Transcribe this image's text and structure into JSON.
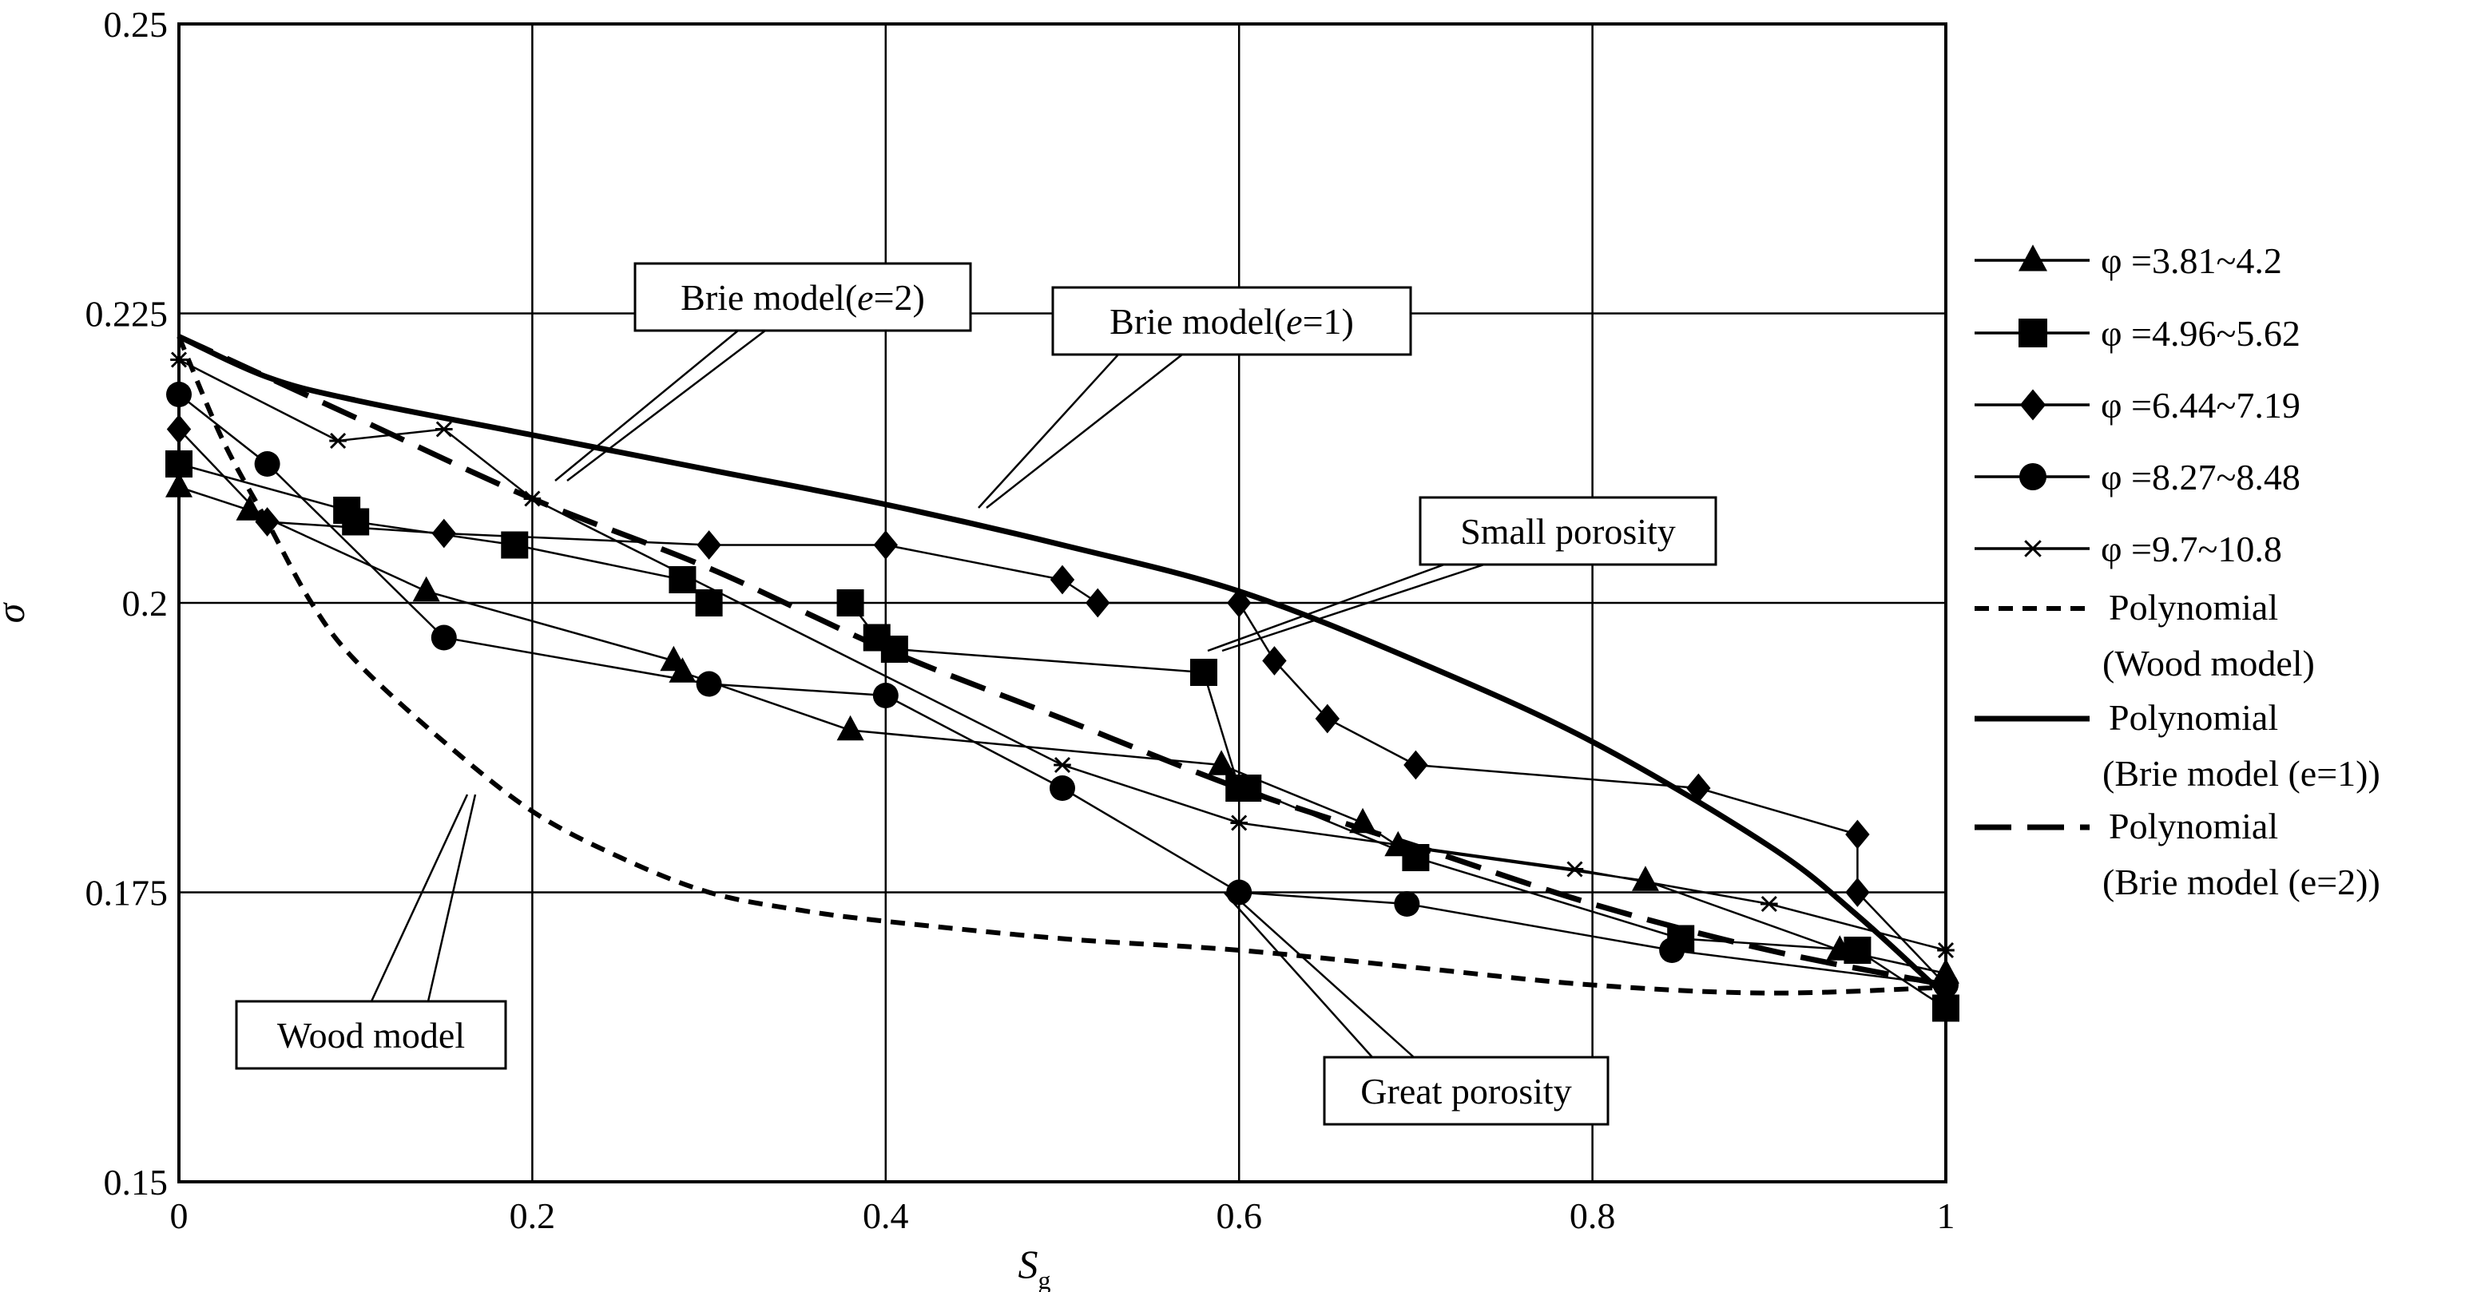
{
  "chart_data": {
    "type": "line",
    "xlabel": "Sg",
    "xlabel_main": "S",
    "xlabel_sub": "g",
    "ylabel": "σ",
    "xlim": [
      0,
      1
    ],
    "ylim": [
      0.15,
      0.25
    ],
    "x_ticks": [
      0,
      0.2,
      0.4,
      0.6,
      0.8,
      1
    ],
    "x_tick_labels": [
      "0",
      "0.2",
      "0.4",
      "0.6",
      "0.8",
      "1"
    ],
    "y_ticks": [
      0.15,
      0.175,
      0.2,
      0.225,
      0.25
    ],
    "y_tick_labels": [
      "0.15",
      "0.175",
      "0.2",
      "0.225",
      "0.25"
    ],
    "grid": true,
    "legend_position": "right",
    "series": [
      {
        "name": "φ =3.81~4.2",
        "marker": "triangle",
        "style": "solid",
        "points": [
          [
            0,
            0.21
          ],
          [
            0.04,
            0.208
          ],
          [
            0.14,
            0.201
          ],
          [
            0.28,
            0.195
          ],
          [
            0.285,
            0.194
          ],
          [
            0.38,
            0.189
          ],
          [
            0.59,
            0.186
          ],
          [
            0.67,
            0.181
          ],
          [
            0.69,
            0.179
          ],
          [
            0.83,
            0.176
          ],
          [
            0.94,
            0.17
          ],
          [
            1.0,
            0.168
          ]
        ]
      },
      {
        "name": "φ =4.96~5.62",
        "marker": "square",
        "style": "solid",
        "points": [
          [
            0,
            0.212
          ],
          [
            0.095,
            0.208
          ],
          [
            0.1,
            0.207
          ],
          [
            0.19,
            0.205
          ],
          [
            0.285,
            0.202
          ],
          [
            0.3,
            0.2
          ],
          [
            0.38,
            0.2
          ],
          [
            0.395,
            0.197
          ],
          [
            0.405,
            0.196
          ],
          [
            0.58,
            0.194
          ],
          [
            0.6,
            0.184
          ],
          [
            0.605,
            0.184
          ],
          [
            0.7,
            0.178
          ],
          [
            0.85,
            0.171
          ],
          [
            0.95,
            0.17
          ],
          [
            1.0,
            0.165
          ]
        ]
      },
      {
        "name": "φ =6.44~7.19",
        "marker": "diamond",
        "style": "solid",
        "points": [
          [
            0,
            0.215
          ],
          [
            0.05,
            0.207
          ],
          [
            0.15,
            0.206
          ],
          [
            0.3,
            0.205
          ],
          [
            0.4,
            0.205
          ],
          [
            0.5,
            0.202
          ],
          [
            0.52,
            0.2
          ],
          [
            0.6,
            0.2
          ],
          [
            0.62,
            0.195
          ],
          [
            0.65,
            0.19
          ],
          [
            0.7,
            0.186
          ],
          [
            0.86,
            0.184
          ],
          [
            0.95,
            0.18
          ],
          [
            0.95,
            0.175
          ],
          [
            1.0,
            0.167
          ]
        ]
      },
      {
        "name": "φ =8.27~8.48",
        "marker": "circle",
        "style": "solid",
        "points": [
          [
            0,
            0.218
          ],
          [
            0.05,
            0.212
          ],
          [
            0.15,
            0.197
          ],
          [
            0.3,
            0.193
          ],
          [
            0.4,
            0.192
          ],
          [
            0.5,
            0.184
          ],
          [
            0.6,
            0.175
          ],
          [
            0.695,
            0.174
          ],
          [
            0.845,
            0.17
          ],
          [
            1.0,
            0.167
          ]
        ]
      },
      {
        "name": "φ =9.7~10.8",
        "marker": "star",
        "style": "solid",
        "points": [
          [
            0,
            0.221
          ],
          [
            0.09,
            0.214
          ],
          [
            0.15,
            0.215
          ],
          [
            0.2,
            0.209
          ],
          [
            0.5,
            0.186
          ],
          [
            0.6,
            0.181
          ],
          [
            0.79,
            0.177
          ],
          [
            0.9,
            0.174
          ],
          [
            1.0,
            0.17
          ]
        ]
      },
      {
        "name": "Polynomial (Wood model)",
        "legend_lines": [
          "Polynomial",
          "(Wood model)"
        ],
        "marker": "none",
        "style": "short-dash",
        "points": [
          [
            0,
            0.223
          ],
          [
            0.025,
            0.214
          ],
          [
            0.05,
            0.207
          ],
          [
            0.075,
            0.2
          ],
          [
            0.1,
            0.195
          ],
          [
            0.15,
            0.188
          ],
          [
            0.2,
            0.182
          ],
          [
            0.25,
            0.178
          ],
          [
            0.3,
            0.175
          ],
          [
            0.35,
            0.1735
          ],
          [
            0.4,
            0.1725
          ],
          [
            0.5,
            0.171
          ],
          [
            0.6,
            0.17
          ],
          [
            0.7,
            0.1685
          ],
          [
            0.8,
            0.167
          ],
          [
            0.9,
            0.1663
          ],
          [
            1.0,
            0.1668
          ]
        ]
      },
      {
        "name": "Polynomial (Brie model (e=1))",
        "legend_lines": [
          "Polynomial",
          "(Brie model  (e=1))"
        ],
        "marker": "none",
        "style": "solid-thick",
        "points": [
          [
            0,
            0.223
          ],
          [
            0.05,
            0.2195
          ],
          [
            0.1,
            0.2175
          ],
          [
            0.2,
            0.2145
          ],
          [
            0.3,
            0.2115
          ],
          [
            0.4,
            0.2085
          ],
          [
            0.5,
            0.205
          ],
          [
            0.6,
            0.201
          ],
          [
            0.7,
            0.195
          ],
          [
            0.8,
            0.188
          ],
          [
            0.9,
            0.179
          ],
          [
            0.95,
            0.173
          ],
          [
            1.0,
            0.166
          ]
        ]
      },
      {
        "name": "Polynomial (Brie model (e=2))",
        "legend_lines": [
          "Polynomial",
          "(Brie model  (e=2))"
        ],
        "marker": "none",
        "style": "long-dash",
        "points": [
          [
            0,
            0.223
          ],
          [
            0.1,
            0.216
          ],
          [
            0.2,
            0.209
          ],
          [
            0.3,
            0.203
          ],
          [
            0.4,
            0.196
          ],
          [
            0.5,
            0.19
          ],
          [
            0.6,
            0.184
          ],
          [
            0.7,
            0.179
          ],
          [
            0.8,
            0.174
          ],
          [
            0.9,
            0.17
          ],
          [
            1.0,
            0.167
          ]
        ]
      }
    ],
    "annotations": [
      {
        "text": "Brie model(e=2)",
        "parts": [
          "Brie model(",
          "e",
          "=2)"
        ]
      },
      {
        "text": "Brie model(e=1)",
        "parts": [
          "Brie model(",
          "e",
          "=1)"
        ]
      },
      {
        "text": "Small porosity"
      },
      {
        "text": "Wood model"
      },
      {
        "text": "Great porosity"
      }
    ]
  }
}
